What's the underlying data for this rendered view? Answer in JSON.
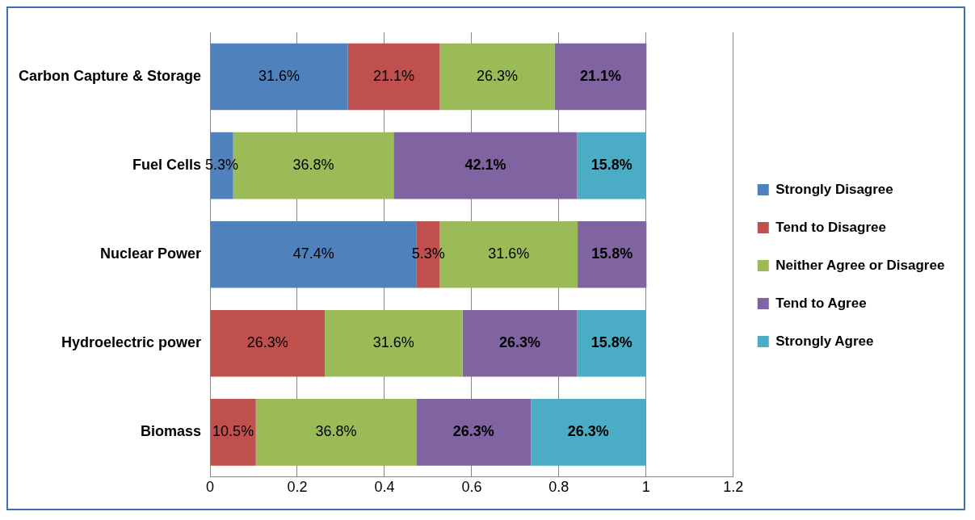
{
  "chart_data": {
    "type": "bar",
    "orientation": "horizontal",
    "stacked": true,
    "categories": [
      "Carbon Capture & Storage",
      "Fuel Cells",
      "Nuclear Power",
      "Hydroelectric power",
      "Biomass"
    ],
    "series": [
      {
        "name": "Strongly Disagree",
        "color": "#4f81bd",
        "values": [
          0.316,
          0.053,
          0.474,
          null,
          null
        ],
        "value_labels": [
          "31.6%",
          "5.3%",
          "47.4%",
          null,
          null
        ]
      },
      {
        "name": "Tend to Disagree",
        "color": "#c0504d",
        "values": [
          0.211,
          null,
          0.053,
          0.263,
          0.105
        ],
        "value_labels": [
          "21.1%",
          null,
          "5.3%",
          "26.3%",
          "10.5%"
        ]
      },
      {
        "name": "Neither Agree or Disagree",
        "color": "#9bbb59",
        "values": [
          0.263,
          0.368,
          0.316,
          0.316,
          0.368
        ],
        "value_labels": [
          "26.3%",
          "36.8%",
          "31.6%",
          "31.6%",
          "36.8%"
        ]
      },
      {
        "name": "Tend to Agree",
        "color": "#8064a2",
        "values": [
          0.211,
          0.421,
          0.158,
          0.263,
          0.263
        ],
        "value_labels": [
          "21.1%",
          "42.1%",
          "15.8%",
          "26.3%",
          "26.3%"
        ]
      },
      {
        "name": "Strongly Agree",
        "color": "#4bacc6",
        "values": [
          null,
          0.158,
          null,
          0.158,
          0.263
        ],
        "value_labels": [
          null,
          "15.8%",
          null,
          "15.8%",
          "26.3%"
        ]
      }
    ],
    "xlim": [
      0,
      1.2
    ],
    "xticks": [
      0,
      0.2,
      0.4,
      0.6,
      0.8,
      1,
      1.2
    ],
    "grid": "x",
    "legend": "right"
  }
}
